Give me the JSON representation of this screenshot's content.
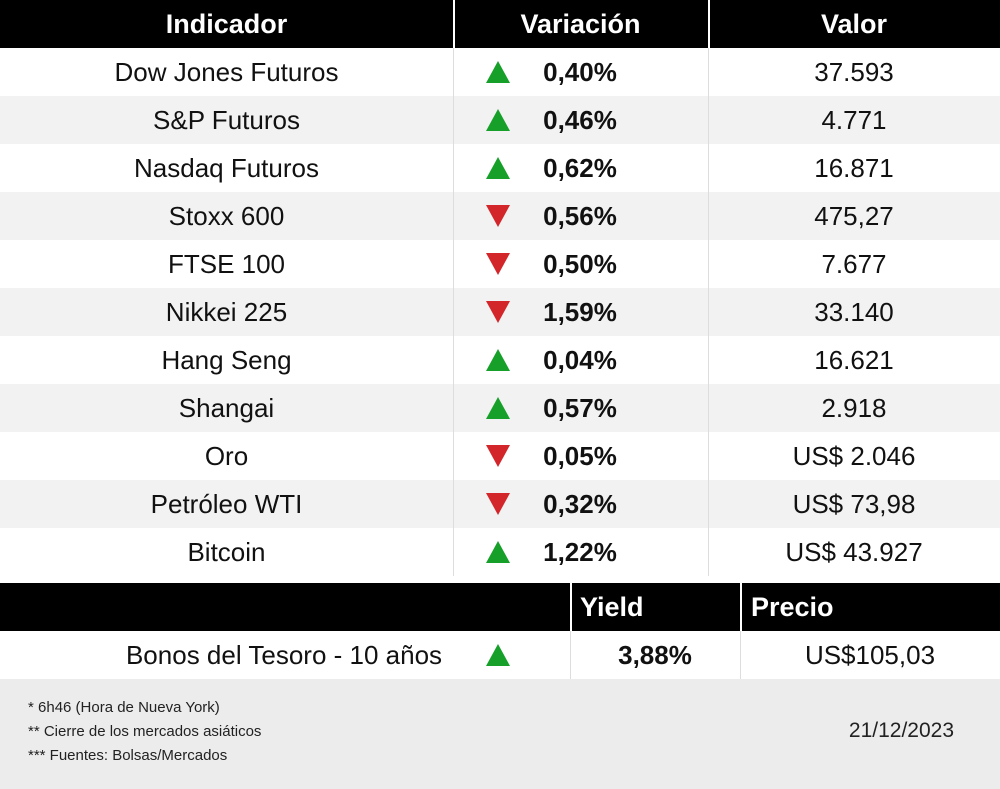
{
  "header": {
    "columns": [
      "Indicador",
      "Variación",
      "Valor"
    ]
  },
  "table": {
    "rows": [
      {
        "indicator": "Dow Jones Futuros",
        "direction": "up",
        "change": "0,40%",
        "value": "37.593"
      },
      {
        "indicator": "S&P Futuros",
        "direction": "up",
        "change": "0,46%",
        "value": "4.771"
      },
      {
        "indicator": "Nasdaq Futuros",
        "direction": "up",
        "change": "0,62%",
        "value": "16.871"
      },
      {
        "indicator": "Stoxx 600",
        "direction": "down",
        "change": "0,56%",
        "value": "475,27"
      },
      {
        "indicator": "FTSE 100",
        "direction": "down",
        "change": "0,50%",
        "value": "7.677"
      },
      {
        "indicator": "Nikkei 225",
        "direction": "down",
        "change": "1,59%",
        "value": "33.140"
      },
      {
        "indicator": "Hang Seng",
        "direction": "up",
        "change": "0,04%",
        "value": "16.621"
      },
      {
        "indicator": "Shangai",
        "direction": "up",
        "change": "0,57%",
        "value": "2.918"
      },
      {
        "indicator": "Oro",
        "direction": "down",
        "change": "0,05%",
        "value": "US$ 2.046"
      },
      {
        "indicator": "Petróleo WTI",
        "direction": "down",
        "change": "0,32%",
        "value": "US$ 73,98"
      },
      {
        "indicator": "Bitcoin",
        "direction": "up",
        "change": "1,22%",
        "value": "US$ 43.927"
      }
    ]
  },
  "bond": {
    "columns": [
      "Yield",
      "Precio"
    ],
    "label": "Bonos del Tesoro - 10 años",
    "direction": "up",
    "yield": "3,88%",
    "price": "US$105,03"
  },
  "footer": {
    "notes": [
      "* 6h46 (Hora de Nueva York)",
      "** Cierre de los mercados asiáticos",
      "*** Fuentes: Bolsas/Mercados"
    ],
    "date": "21/12/2023"
  }
}
